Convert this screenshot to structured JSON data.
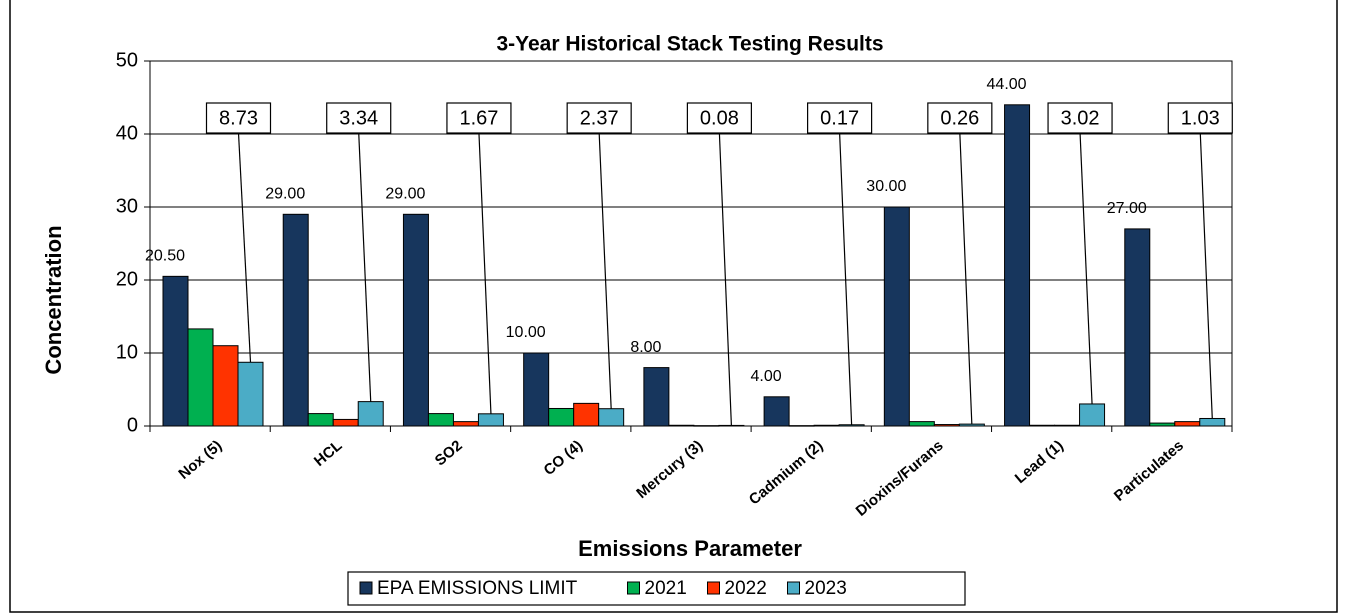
{
  "chart_data": {
    "type": "bar",
    "title": "3-Year Historical Stack Testing Results",
    "x_label": "Emissions Parameter",
    "y_label": "Concentration",
    "categories": [
      "Nox (5)",
      "HCL",
      "SO2",
      "CO (4)",
      "Mercury (3)",
      "Cadmium (2)",
      "Dioxins/Furans",
      "Lead (1)",
      "Particulates"
    ],
    "ylim": [
      0,
      50
    ],
    "yticks": [
      0,
      10,
      20,
      30,
      40,
      50
    ],
    "grid": true,
    "series": [
      {
        "name": "EPA EMISSIONS LIMIT",
        "color": "#17365d",
        "values": [
          20.5,
          29,
          29,
          10,
          8,
          4,
          30,
          44,
          27
        ],
        "value_labels": [
          "20.50",
          "29.00",
          "29.00",
          "10.00",
          "8.00",
          "4.00",
          "30.00",
          "44.00",
          "27.00"
        ]
      },
      {
        "name": "2021",
        "color": "#00b050",
        "values": [
          13.3,
          1.7,
          1.7,
          2.4,
          0.1,
          0.05,
          0.6,
          0.1,
          0.4
        ]
      },
      {
        "name": "2022",
        "color": "#ff3300",
        "values": [
          11,
          0.9,
          0.6,
          3.1,
          0.05,
          0.1,
          0.2,
          0.1,
          0.6
        ]
      },
      {
        "name": "2023",
        "color": "#4bacc6",
        "values": [
          8.73,
          3.34,
          1.67,
          2.37,
          0.08,
          0.17,
          0.26,
          3.02,
          1.03
        ],
        "value_labels": [
          "8.73",
          "3.34",
          "1.67",
          "2.37",
          "0.08",
          "0.17",
          "0.26",
          "3.02",
          "1.03"
        ]
      }
    ]
  }
}
